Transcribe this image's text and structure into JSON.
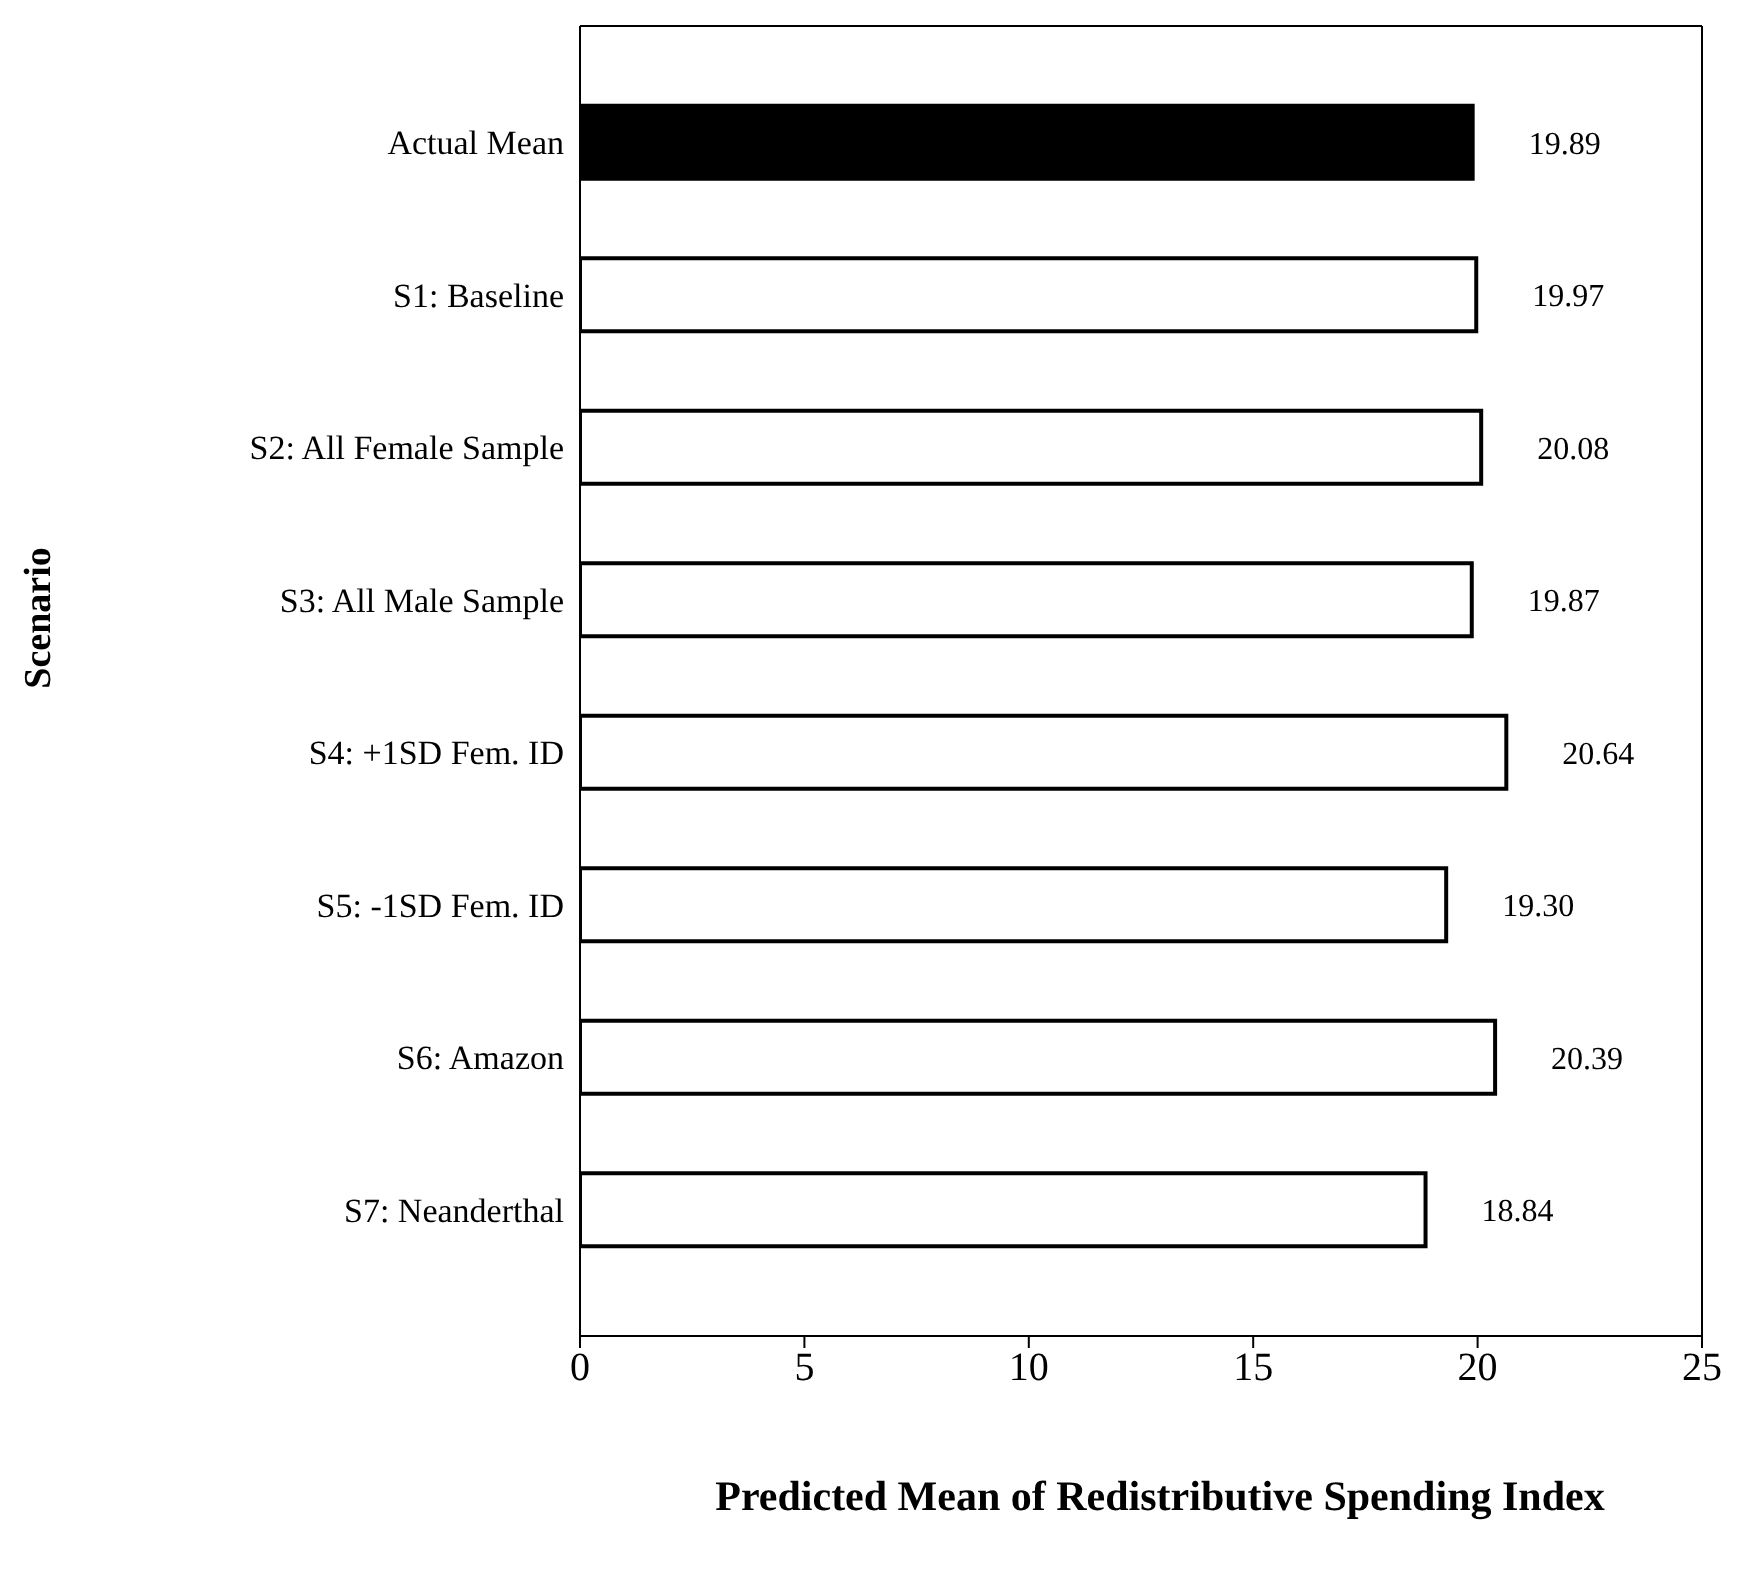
{
  "chart_data": {
    "type": "bar",
    "orientation": "horizontal",
    "xlabel": "Predicted Mean of Redistributive Spending Index",
    "ylabel": "Scenario",
    "categories": [
      "Actual Mean",
      "S1:  Baseline",
      "S2:  All Female Sample",
      "S3:  All Male Sample",
      "S4:  +1SD Fem. ID",
      "S5:  -1SD Fem. ID",
      "S6:  Amazon",
      "S7: Neanderthal"
    ],
    "values": [
      19.89,
      19.97,
      20.08,
      19.87,
      20.64,
      19.3,
      20.39,
      18.84
    ],
    "colors": [
      "#000000",
      "#ffffff",
      "#ffffff",
      "#ffffff",
      "#ffffff",
      "#ffffff",
      "#ffffff",
      "#ffffff"
    ],
    "value_labels": [
      "19.89",
      "19.97",
      "20.08",
      "19.87",
      "20.64",
      "19.30",
      "20.39",
      "18.84"
    ],
    "xlim": [
      0,
      25
    ],
    "xticks": [
      0,
      5,
      10,
      15,
      20,
      25
    ]
  }
}
